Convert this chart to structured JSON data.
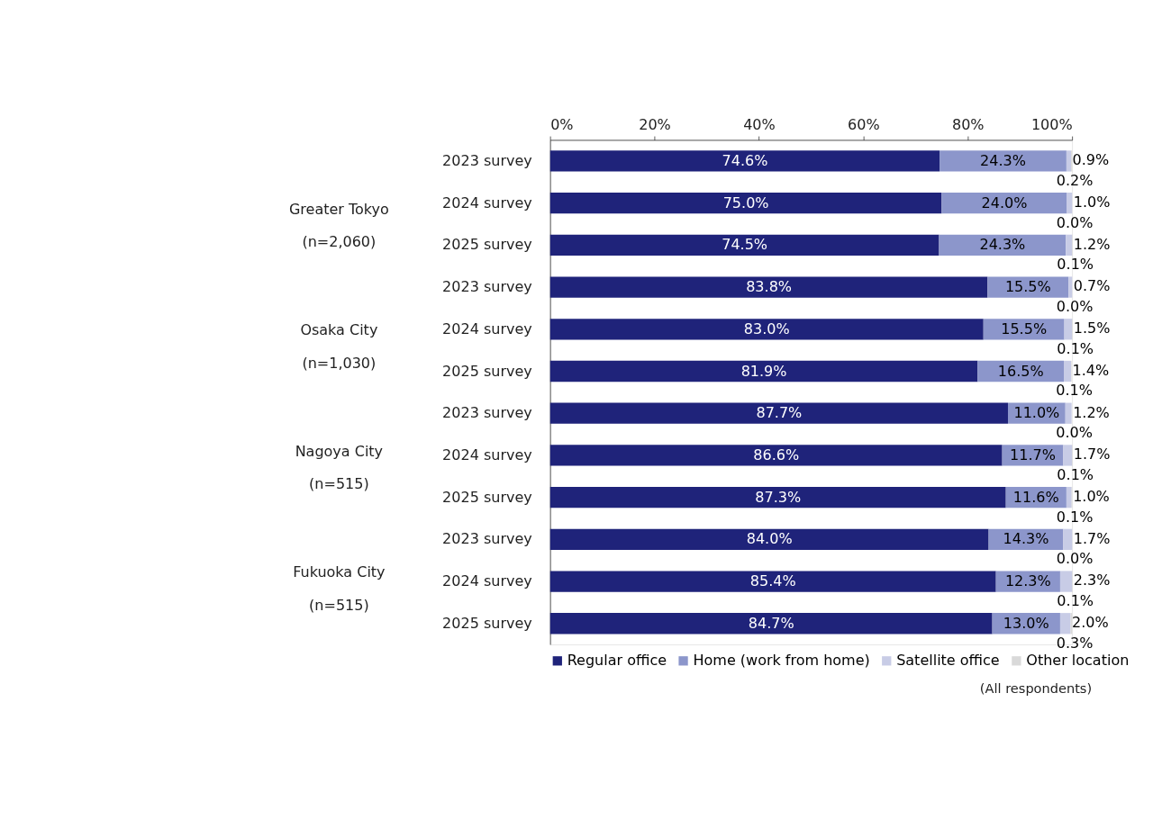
{
  "chart_data": {
    "type": "bar",
    "orientation": "horizontal",
    "stacked": true,
    "categories": [
      "2023 survey",
      "2024 survey",
      "2025 survey",
      "2023 survey",
      "2024 survey",
      "2025 survey",
      "2023 survey",
      "2024 survey",
      "2025 survey",
      "2023 survey",
      "2024 survey",
      "2025 survey"
    ],
    "series": [
      {
        "name": "Regular office",
        "color": "#1f237a",
        "values": [
          74.6,
          75.0,
          74.5,
          83.8,
          83.0,
          81.9,
          87.7,
          86.6,
          87.3,
          84.0,
          85.4,
          84.7
        ],
        "value_labels": [
          "74.6%",
          "75.0%",
          "74.5%",
          "83.8%",
          "83.0%",
          "81.9%",
          "87.7%",
          "86.6%",
          "87.3%",
          "84.0%",
          "85.4%",
          "84.7%"
        ]
      },
      {
        "name": "Home (work from home)",
        "color": "#8c96cb",
        "values": [
          24.3,
          24.0,
          24.3,
          15.5,
          15.5,
          16.5,
          11.0,
          11.7,
          11.6,
          14.3,
          12.3,
          13.0
        ],
        "value_labels": [
          "24.3%",
          "24.0%",
          "24.3%",
          "15.5%",
          "15.5%",
          "16.5%",
          "11.0%",
          "11.7%",
          "11.6%",
          "14.3%",
          "12.3%",
          "13.0%"
        ]
      },
      {
        "name": "Satellite office",
        "color": "#c8cce6",
        "values": [
          0.9,
          1.0,
          1.2,
          0.7,
          1.5,
          1.4,
          1.2,
          1.7,
          1.0,
          1.7,
          2.3,
          2.0
        ],
        "value_labels": [
          "0.9%",
          "1.0%",
          "1.2%",
          "0.7%",
          "1.5%",
          "1.4%",
          "1.2%",
          "1.7%",
          "1.0%",
          "1.7%",
          "2.3%",
          "2.0%"
        ]
      },
      {
        "name": "Other location",
        "color": "#d9d9d9",
        "values": [
          0.2,
          0.0,
          0.1,
          0.0,
          0.1,
          0.1,
          0.0,
          0.1,
          0.1,
          0.0,
          0.1,
          0.3
        ],
        "value_labels": [
          "0.2%",
          "0.0%",
          "0.1%",
          "0.0%",
          "0.1%",
          "0.1%",
          "0.0%",
          "0.1%",
          "0.1%",
          "0.0%",
          "0.1%",
          "0.3%"
        ]
      }
    ],
    "xlim": [
      0,
      100
    ],
    "xticks": [
      {
        "value": 0,
        "label": "0%"
      },
      {
        "value": 20,
        "label": "20%"
      },
      {
        "value": 40,
        "label": "40%"
      },
      {
        "value": 60,
        "label": "60%"
      },
      {
        "value": 80,
        "label": "80%"
      },
      {
        "value": 100,
        "label": "100%"
      }
    ],
    "grid": false,
    "legend": "bottom",
    "annotations": [
      "Greater Tokyo\n(n=2,060)",
      "Osaka City\n(n=1,030)",
      "Nagoya City\n(n=515)",
      "Fukuoka City\n(n=515)",
      "(All respondents)"
    ]
  }
}
